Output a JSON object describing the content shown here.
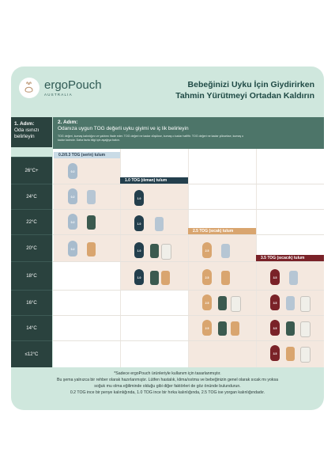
{
  "brand": {
    "name_light": "ergo",
    "name_bold": "Pouch",
    "sub": "AUSTRALIA"
  },
  "headline": {
    "line1": "Bebeğinizi Uyku İçin Giydirirken",
    "line2": "Tahmin Yürütmeyi Ortadan Kaldırın"
  },
  "step1": {
    "title": "1. Adım:",
    "line1": "Oda ısınızı",
    "line2": "belirleyin"
  },
  "step2": {
    "title": "2. Adım:",
    "subtitle": "Odanıza uygun TOG değerli uyku giyimi ve iç lik belirleyin",
    "desc1": "TOG değeri, kumaş kalınlığını ve yalıtımı ifade eder. TOG değeri ne kadar düşükse, kumaş o kadar hafiftir. TOG değeri ne kadar yüksekse, kumaş o",
    "desc2": "kadar kalındır. Daha fazla bilgi için aşağıya bakın."
  },
  "temps": [
    "26°C+",
    "24°C",
    "22°C",
    "20°C",
    "18°C",
    "16°C",
    "14°C",
    "≤12°C"
  ],
  "bands": {
    "b02": "0.2/0.3 TOG (serin) tulum",
    "b10": "1.0 TOG (ılıman) tulum",
    "b25": "2.5 TOG (sıcak) tulum",
    "b35": "3.5 TOG (sıcacık) tulum"
  },
  "sack_labels": {
    "s02": "0.2",
    "s10": "1.0",
    "s25": "2.5",
    "s35": "3.5"
  },
  "colors": {
    "card": "#cfe7dd",
    "dark": "#2a423e",
    "teal": "#4d7569",
    "tog02": "#a8bccd",
    "tog10": "#233f4d",
    "tog25": "#d9a56f",
    "tog35": "#7a2228"
  },
  "footnote": {
    "l1": "*Sadece ergoPouch ürünleriyle kullanım için tasarlanmıştır.",
    "l2": "Bu şema yalnızca bir rehber olarak hazırlanmıştır. Lütfen hastalık, klima/ısıtma ve bebeğinizin genel olarak sıcak mı yoksa",
    "l3": "soğuk mu olma eğiliminde olduğu gibi diğer faktörleri de göz önünde bulundurun.",
    "l4": "0.2 TOG ince bir penye kalınlığında, 1.0 TOG ince bir hırka kalınlığında, 2.5 TOG ise yorgan kalınlığındadır."
  }
}
